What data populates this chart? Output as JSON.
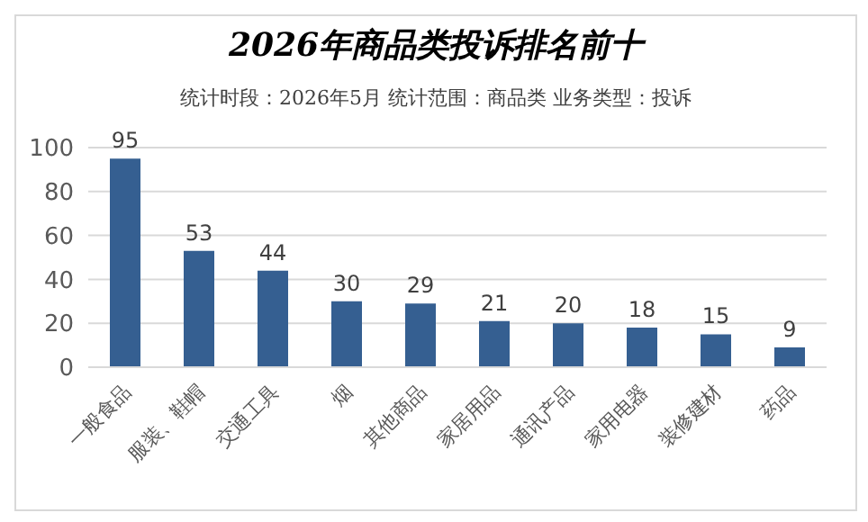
{
  "chart_data": {
    "type": "bar",
    "title": "2026年商品类投诉排名前十",
    "subtitle": "统计时段：2026年5月 统计范围：商品类  业务类型：投诉",
    "categories": [
      "一般食品",
      "服装、鞋帽",
      "交通工具",
      "烟",
      "其他商品",
      "家居用品",
      "通讯产品",
      "家用电器",
      "装修建材",
      "药品"
    ],
    "values": [
      95,
      53,
      44,
      30,
      29,
      21,
      20,
      18,
      15,
      9
    ],
    "color": "#355f91",
    "ylim": [
      0,
      100
    ],
    "yticks": [
      0,
      20,
      40,
      60,
      80,
      100
    ],
    "grid": "y",
    "data_labels": true
  }
}
